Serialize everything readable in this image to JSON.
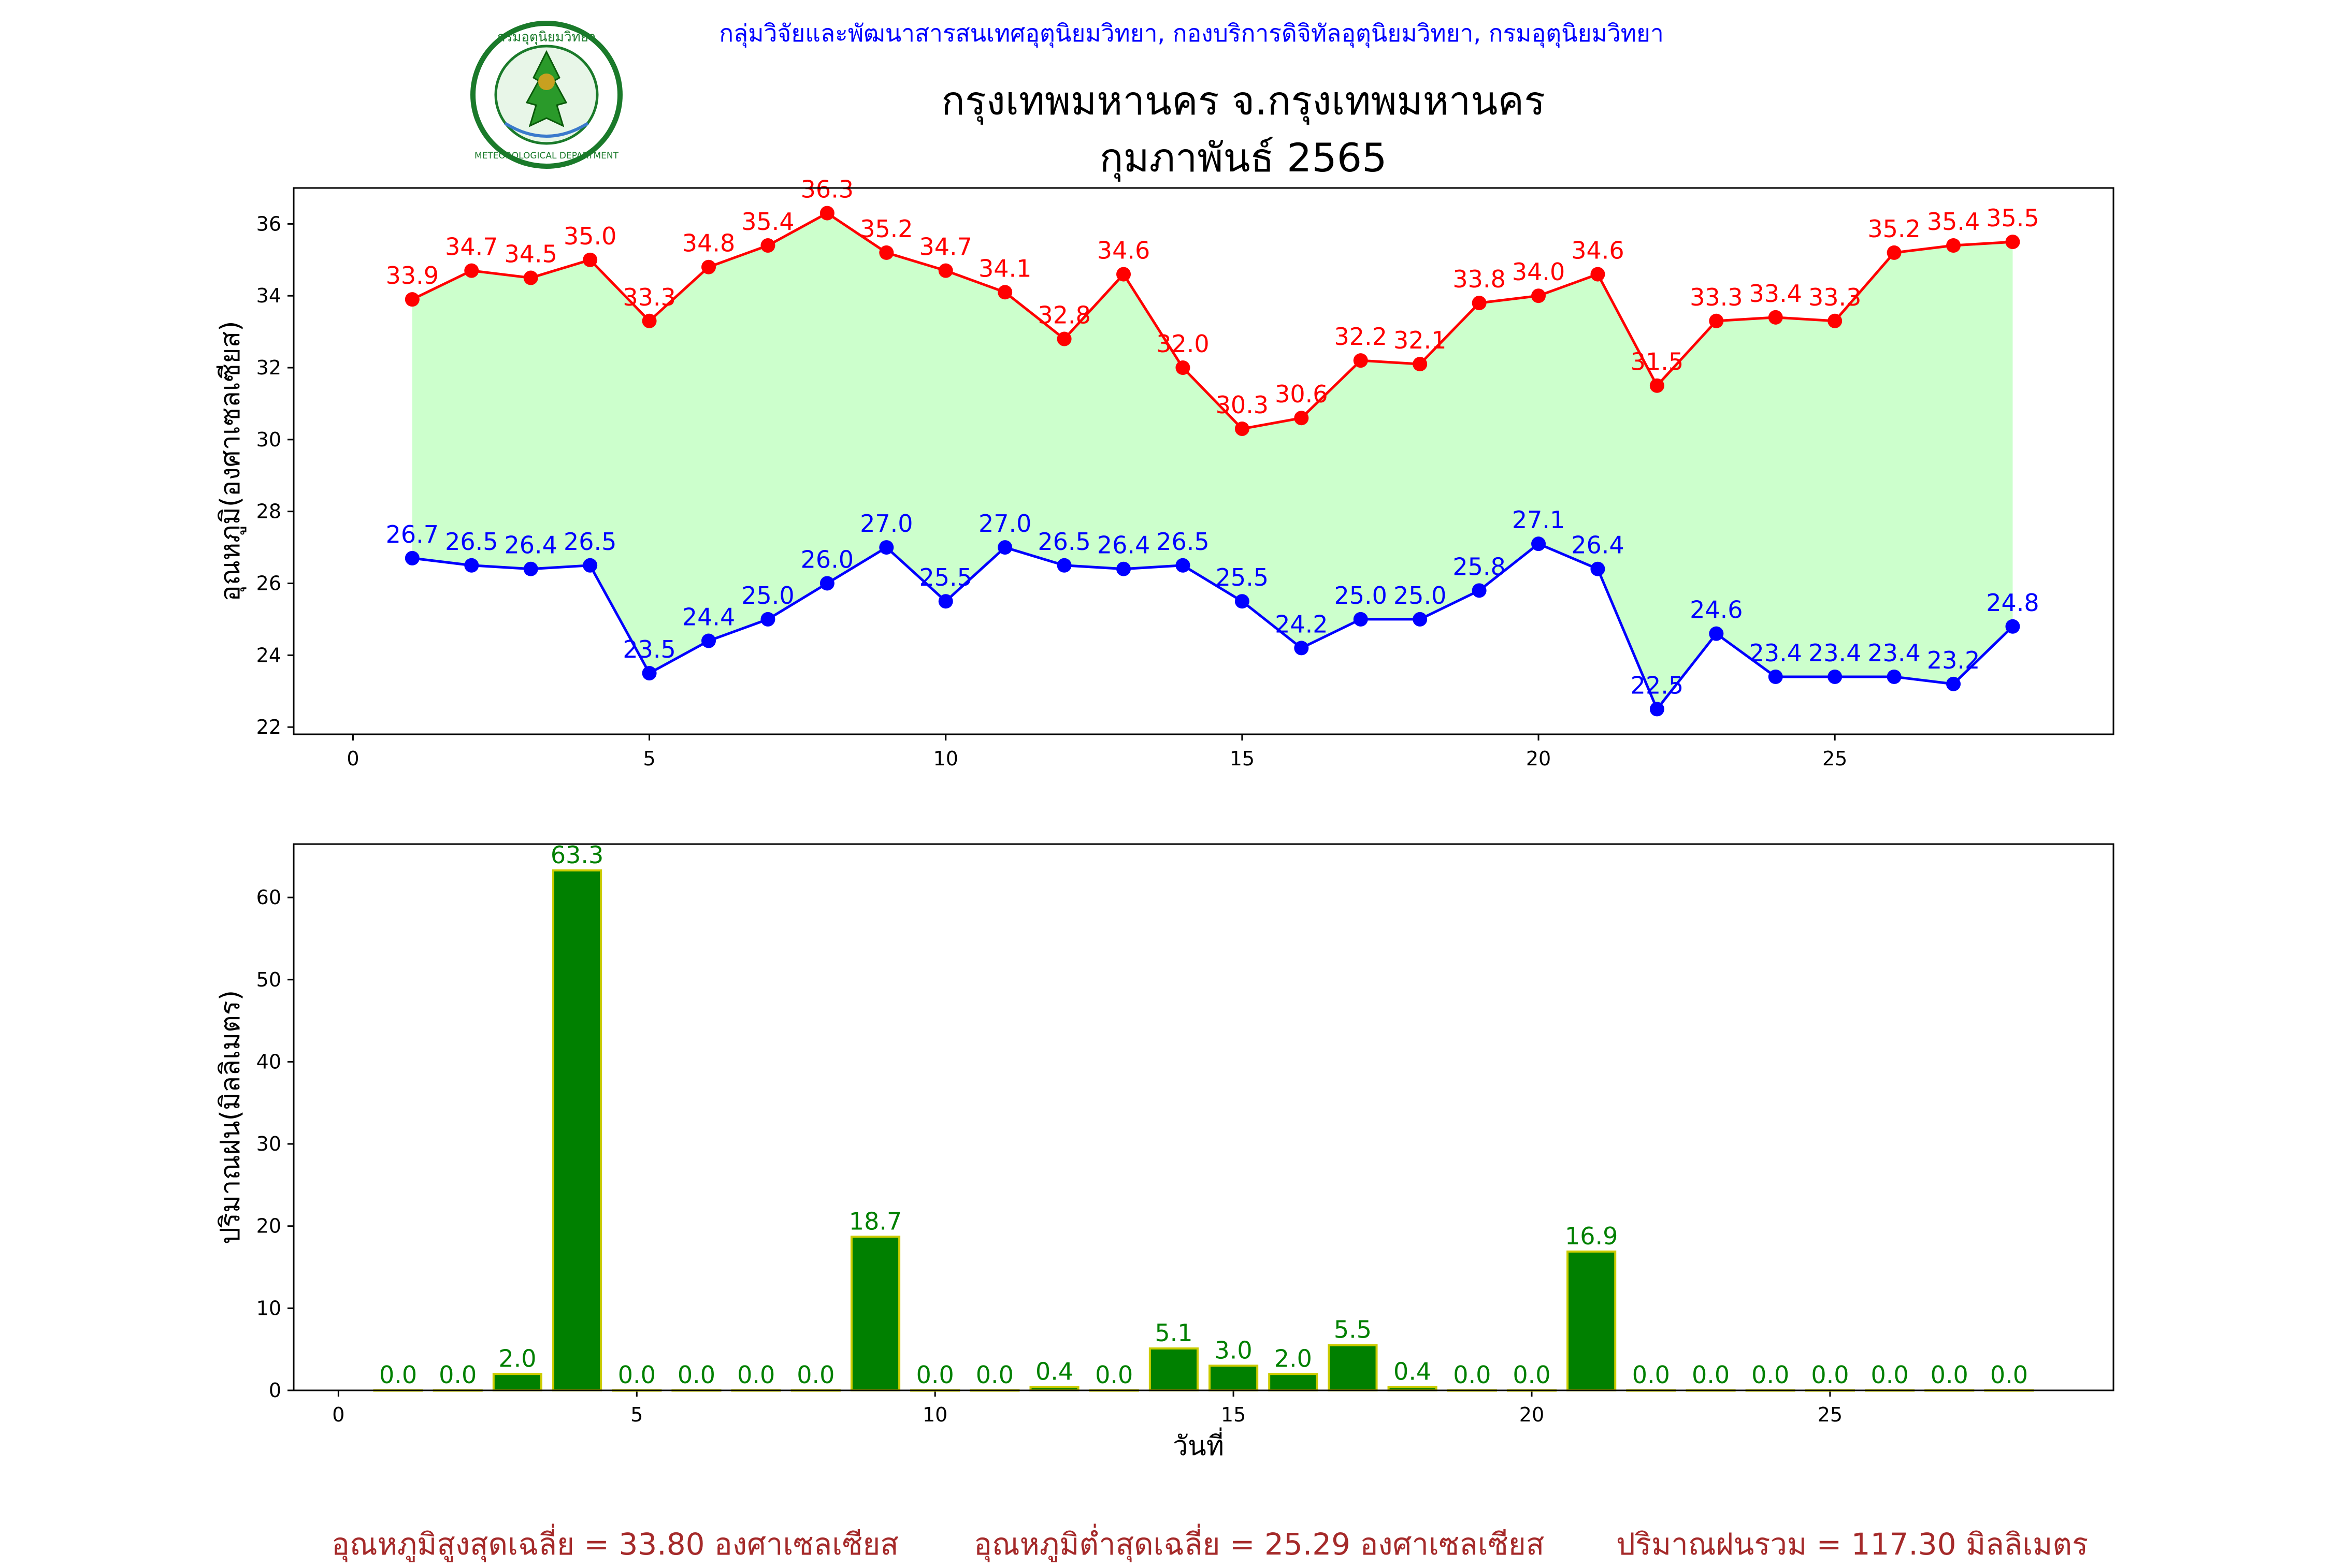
{
  "header": {
    "org": "กลุ่มวิจัยและพัฒนาสารสนเทศอุตุนิยมวิทยา, กองบริการดิจิทัลอุตุนิยมวิทยา, กรมอุตุนิยมวิทยา",
    "station": "กรุงเทพมหานคร จ.กรุงเทพมหานคร",
    "period": "กุมภาพันธ์ 2565",
    "logo_text": "กรมอุตุนิยมวิทยา",
    "logo_text_en": "METEOROLOGICAL DEPARTMENT"
  },
  "chart_data": [
    {
      "type": "line",
      "ylabel": "อุณหภูมิ(องศาเซลเซียส)",
      "xlabel": "",
      "xlim": [
        -1,
        29.7
      ],
      "ylim": [
        21.8,
        37.0
      ],
      "xticks": [
        0,
        5,
        10,
        15,
        20,
        25
      ],
      "yticks": [
        22,
        24,
        26,
        28,
        30,
        32,
        34,
        36
      ],
      "fill_between": true,
      "fill_color": "#ccffcc",
      "x": [
        1,
        2,
        3,
        4,
        5,
        6,
        7,
        8,
        9,
        10,
        11,
        12,
        13,
        14,
        15,
        16,
        17,
        18,
        19,
        20,
        21,
        22,
        23,
        24,
        25,
        26,
        27,
        28
      ],
      "series": [
        {
          "color": "#ff0000",
          "values": [
            33.9,
            34.7,
            34.5,
            35.0,
            33.3,
            34.8,
            35.4,
            36.3,
            35.2,
            34.7,
            34.1,
            32.8,
            34.6,
            32.0,
            30.3,
            30.6,
            32.2,
            32.1,
            33.8,
            34.0,
            34.6,
            31.5,
            33.3,
            33.4,
            33.3,
            35.2,
            35.4,
            35.5
          ],
          "labels": [
            "33.9",
            "34.7",
            "34.5",
            "35.0",
            "33.3",
            "34.8",
            "35.4",
            "36.3",
            "35.2",
            "34.7",
            "34.1",
            "32.8",
            "34.6",
            "32.0",
            "30.3",
            "30.6",
            "32.2",
            "32.1",
            "33.8",
            "34.0",
            "34.6",
            "31.5",
            "33.3",
            "33.4",
            "33.3",
            "35.2",
            "35.4",
            "35.5"
          ]
        },
        {
          "color": "#0000ff",
          "values": [
            26.7,
            26.5,
            26.4,
            26.5,
            23.5,
            24.4,
            25.0,
            26.0,
            27.0,
            25.5,
            27.0,
            26.5,
            26.4,
            26.5,
            25.5,
            24.2,
            25.0,
            25.0,
            25.8,
            27.1,
            26.4,
            22.5,
            24.6,
            23.4,
            23.4,
            23.4,
            23.2,
            24.8
          ],
          "labels": [
            "26.7",
            "26.5",
            "26.4",
            "26.5",
            "23.5",
            "24.4",
            "25.0",
            "26.0",
            "27.0",
            "25.5",
            "27.0",
            "26.5",
            "26.4",
            "26.5",
            "25.5",
            "24.2",
            "25.0",
            "25.0",
            "25.8",
            "27.1",
            "26.4",
            "22.5",
            "24.6",
            "23.4",
            "23.4",
            "23.4",
            "23.2",
            "24.8"
          ]
        }
      ]
    },
    {
      "type": "bar",
      "ylabel": "ปริมาณฝน(มิลลิเมตร)",
      "xlabel": "วันที่",
      "xlim": [
        -0.75,
        29.75
      ],
      "ylim": [
        0,
        66.5
      ],
      "xticks": [
        0,
        5,
        10,
        15,
        20,
        25
      ],
      "yticks": [
        0,
        10,
        20,
        30,
        40,
        50,
        60
      ],
      "bar_color": "#008000",
      "edge_color": "#cccc00",
      "label_color": "#008000",
      "x": [
        1,
        2,
        3,
        4,
        5,
        6,
        7,
        8,
        9,
        10,
        11,
        12,
        13,
        14,
        15,
        16,
        17,
        18,
        19,
        20,
        21,
        22,
        23,
        24,
        25,
        26,
        27,
        28
      ],
      "values": [
        0.0,
        0.0,
        2.0,
        63.3,
        0.0,
        0.0,
        0.0,
        0.0,
        18.7,
        0.0,
        0.0,
        0.4,
        0.0,
        5.1,
        3.0,
        2.0,
        5.5,
        0.4,
        0.0,
        0.0,
        16.9,
        0.0,
        0.0,
        0.0,
        0.0,
        0.0,
        0.0,
        0.0
      ],
      "labels": [
        "0.0",
        "0.0",
        "2.0",
        "63.3",
        "0.0",
        "0.0",
        "0.0",
        "0.0",
        "18.7",
        "0.0",
        "0.0",
        "0.4",
        "0.0",
        "5.1",
        "3.0",
        "2.0",
        "5.5",
        "0.4",
        "0.0",
        "0.0",
        "16.9",
        "0.0",
        "0.0",
        "0.0",
        "0.0",
        "0.0",
        "0.0",
        "0.0"
      ]
    }
  ],
  "summary": {
    "avg_max": "อุณหภูมิสูงสุดเฉลี่ย = 33.80 องศาเซลเซียส",
    "avg_min": "อุณหภูมิต่ำสุดเฉลี่ย = 25.29 องศาเซลเซียส",
    "total_rain": "ปริมาณฝนรวม = 117.30 มิลลิเมตร"
  }
}
